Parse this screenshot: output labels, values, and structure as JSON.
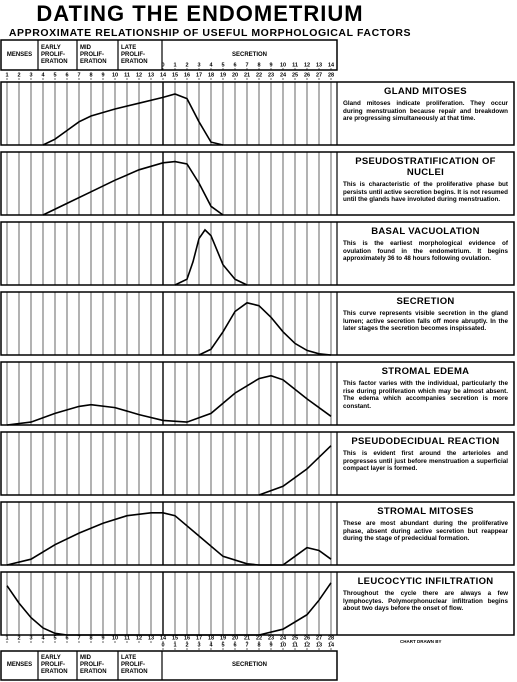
{
  "header": {
    "title": "DATING THE ENDOMETRIUM",
    "subtitle": "APPROXIMATE RELATIONSHIP OF USEFUL MORPHOLOGICAL FACTORS"
  },
  "phases": [
    "MENSES",
    "EARLY PROLIF- ERATION",
    "MID PROLIF- ERATION",
    "LATE PROLIF- ERATION",
    "SECRETION"
  ],
  "day_axis": {
    "xlim": [
      0.5,
      28.5
    ],
    "xticks": [
      1,
      2,
      3,
      4,
      5,
      6,
      7,
      8,
      9,
      10,
      11,
      12,
      13,
      14,
      15,
      16,
      17,
      18,
      19,
      20,
      21,
      22,
      23,
      24,
      25,
      26,
      27,
      28
    ],
    "secretion_ticks": [
      {
        "value": 14,
        "label": "0"
      },
      {
        "value": 15,
        "label": "1"
      },
      {
        "value": 16,
        "label": "2"
      },
      {
        "value": 17,
        "label": "3"
      },
      {
        "value": 18,
        "label": "4"
      },
      {
        "value": 19,
        "label": "5"
      },
      {
        "value": 20,
        "label": "6"
      },
      {
        "value": 21,
        "label": "7"
      },
      {
        "value": 22,
        "label": "8"
      },
      {
        "value": 23,
        "label": "9"
      },
      {
        "value": 24,
        "label": "10"
      },
      {
        "value": 25,
        "label": "11"
      },
      {
        "value": 26,
        "label": "12"
      },
      {
        "value": 27,
        "label": "13"
      },
      {
        "value": 28,
        "label": "14"
      }
    ]
  },
  "credit": "CHART DRAWN BY",
  "chart_data": [
    {
      "type": "line",
      "title": "GLAND MITOSES",
      "description": "Gland mitoses indicate proliferation. They occur during menstruation because repair and breakdown are progressing simultaneously at that time.",
      "ylim": [
        0,
        100
      ],
      "color": "#000000",
      "x": [
        4,
        5,
        6,
        7,
        8,
        10,
        12,
        14,
        15,
        16,
        17,
        18,
        19
      ],
      "values": [
        0,
        10,
        25,
        40,
        50,
        62,
        72,
        82,
        88,
        80,
        40,
        5,
        0
      ]
    },
    {
      "type": "line",
      "title": "PSEUDOSTRATIFICATION OF NUCLEI",
      "description": "This is characteristic of the proliferative phase but persists until active secretion begins. It is not resumed until the glands have involuted during menstruation.",
      "ylim": [
        0,
        100
      ],
      "color": "#000000",
      "x": [
        4,
        6,
        8,
        10,
        12,
        14,
        15,
        16,
        17,
        18,
        19
      ],
      "values": [
        0,
        20,
        40,
        60,
        78,
        90,
        92,
        88,
        55,
        15,
        0
      ]
    },
    {
      "type": "line",
      "title": "BASAL VACUOLATION",
      "description": "This is the earliest morphological evidence of ovulation found in the endometrium. It begins approximately 36 to 48 hours following ovulation.",
      "ylim": [
        0,
        100
      ],
      "color": "#000000",
      "x": [
        15,
        16,
        16.5,
        17,
        17.5,
        18,
        19,
        20,
        21
      ],
      "values": [
        0,
        10,
        40,
        80,
        95,
        85,
        35,
        10,
        0
      ]
    },
    {
      "type": "line",
      "title": "SECRETION",
      "description": "This curve represents visible secretion in the gland lumen; active secretion falls off more abruptly. In the later stages the secretion becomes inspissated.",
      "ylim": [
        0,
        100
      ],
      "color": "#000000",
      "x": [
        17,
        18,
        19,
        20,
        21,
        22,
        23,
        24,
        25,
        26,
        27,
        28
      ],
      "values": [
        0,
        10,
        40,
        75,
        90,
        85,
        65,
        40,
        20,
        8,
        2,
        0
      ]
    },
    {
      "type": "line",
      "title": "STROMAL EDEMA",
      "description": "This factor varies with the individual, particularly the rise during proliferation which may be almost absent. The edema which accompanies secretion is more constant.",
      "ylim": [
        0,
        100
      ],
      "color": "#000000",
      "x": [
        1,
        3,
        5,
        7,
        8,
        10,
        12,
        14,
        16,
        18,
        20,
        22,
        23,
        24,
        26,
        28
      ],
      "values": [
        0,
        5,
        20,
        32,
        35,
        30,
        18,
        8,
        5,
        20,
        55,
        80,
        85,
        78,
        45,
        15
      ]
    },
    {
      "type": "line",
      "title": "PSEUDODECIDUAL REACTION",
      "description": "This is evident first around the arterioles and progresses until just before menstruation a superficial compact layer is formed.",
      "ylim": [
        0,
        100
      ],
      "color": "#000000",
      "x": [
        22,
        24,
        26,
        28
      ],
      "values": [
        0,
        15,
        45,
        85
      ]
    },
    {
      "type": "line",
      "title": "STROMAL MITOSES",
      "description": "These are most abundant during the proliferative phase, absent during active secretion but reappear during the stage of predecidual formation.",
      "ylim": [
        0,
        100
      ],
      "color": "#000000",
      "x": [
        1,
        3,
        5,
        7,
        9,
        11,
        13,
        14,
        15,
        17,
        19,
        21,
        22,
        24,
        25,
        26,
        27,
        28
      ],
      "values": [
        0,
        10,
        35,
        55,
        72,
        85,
        90,
        90,
        85,
        50,
        15,
        2,
        0,
        0,
        15,
        30,
        25,
        10
      ]
    },
    {
      "type": "line",
      "title": "LEUCOCYTIC INFILTRATION",
      "description": "Throughout the cycle there are always a few lymphocytes. Polymorphonuclear infiltration begins about two days before the onset of flow.",
      "ylim": [
        0,
        100
      ],
      "color": "#000000",
      "x": [
        1,
        2,
        3,
        4,
        5,
        6,
        20,
        22,
        24,
        26,
        27,
        28
      ],
      "values": [
        85,
        55,
        30,
        12,
        3,
        0,
        0,
        0,
        10,
        35,
        60,
        90
      ]
    }
  ]
}
